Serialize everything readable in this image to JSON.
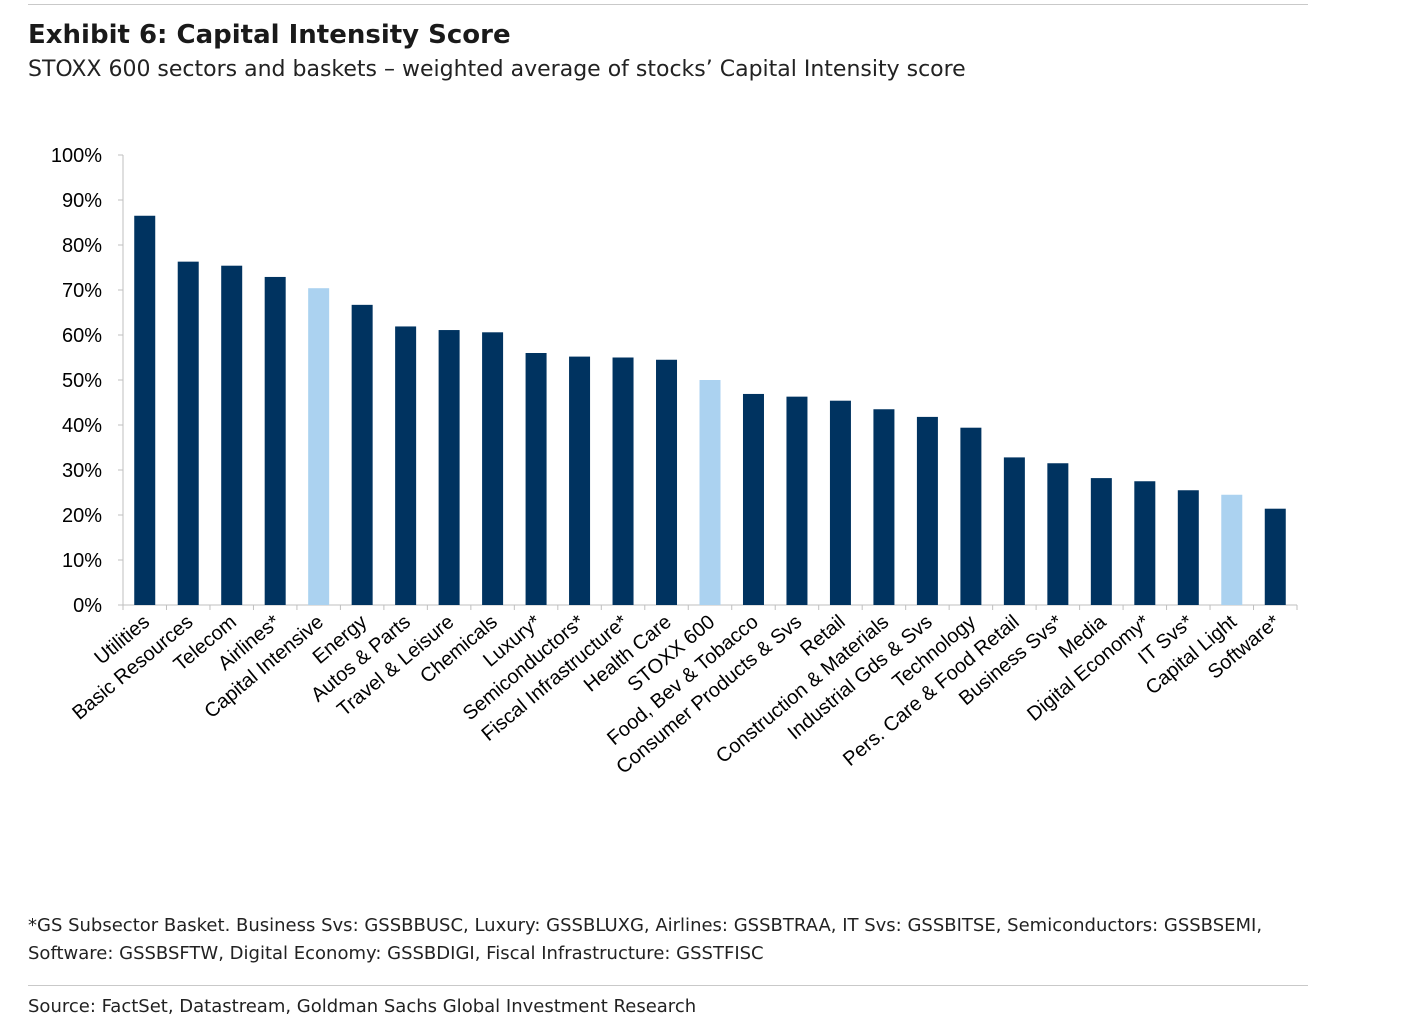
{
  "header": {
    "title": "Exhibit 6: Capital Intensity Score",
    "subtitle": "STOXX 600 sectors and baskets – weighted average of stocks’ Capital Intensity score"
  },
  "footer": {
    "footnote": "*GS Subsector Basket. Business Svs: GSSBBUSC, Luxury: GSSBLUXG, Airlines: GSSBTRAA, IT Svs: GSSBITSE, Semiconductors: GSSBSEMI, Software: GSSBSFTW, Digital Economy: GSSBDIGI, Fiscal Infrastructure: GSSTFISC",
    "source": "Source: FactSet, Datastream, Goldman Sachs Global Investment Research"
  },
  "chart_data": {
    "type": "bar",
    "title": "Exhibit 6: Capital Intensity Score",
    "xlabel": "",
    "ylabel": "",
    "ylim": [
      0,
      100
    ],
    "ytick_format": "percent",
    "yticks": [
      0,
      10,
      20,
      30,
      40,
      50,
      60,
      70,
      80,
      90,
      100
    ],
    "grid": false,
    "legend": "none",
    "colors": {
      "sector": "#003360",
      "basket": "#abd2f0"
    },
    "categories": [
      "Utilities",
      "Basic Resources",
      "Telecom",
      "Airlines*",
      "Capital Intensive",
      "Energy",
      "Autos & Parts",
      "Travel & Leisure",
      "Chemicals",
      "Luxury*",
      "Semiconductors*",
      "Fiscal Infrastructure*",
      "Health Care",
      "STOXX 600",
      "Food, Bev & Tobacco",
      "Consumer Products & Svs",
      "Retail",
      "Construction & Materials",
      "Industrial Gds & Svs",
      "Technology",
      "Pers. Care & Food Retail",
      "Business Svs*",
      "Media",
      "Digital Economy*",
      "IT Svs*",
      "Capital Light",
      "Software*"
    ],
    "values": [
      86.5,
      76.3,
      75.4,
      72.9,
      70.4,
      66.7,
      61.9,
      61.1,
      60.6,
      56.0,
      55.2,
      55.0,
      54.5,
      50.0,
      46.9,
      46.3,
      45.4,
      43.5,
      41.8,
      39.4,
      32.8,
      31.5,
      28.2,
      27.5,
      25.5,
      24.5,
      21.4
    ],
    "highlighted": [
      "Capital Intensive",
      "STOXX 600",
      "Capital Light"
    ]
  }
}
